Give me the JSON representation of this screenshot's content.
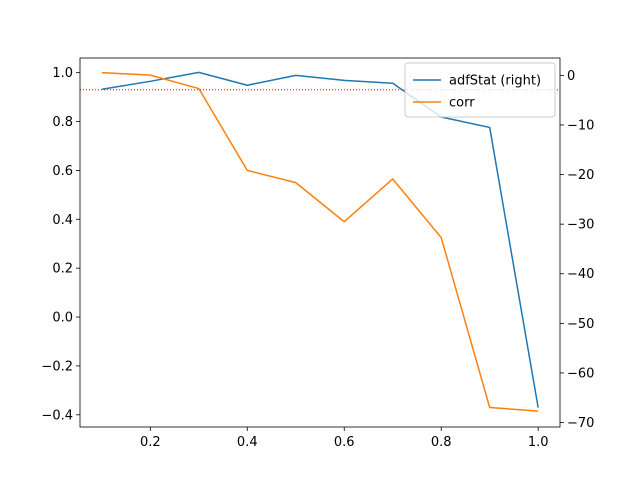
{
  "chart_data": {
    "type": "line",
    "x": [
      0.1,
      0.2,
      0.3,
      0.4,
      0.5,
      0.6,
      0.7,
      0.8,
      0.9,
      1.0
    ],
    "series": [
      {
        "name": "adfStat (right)",
        "axis": "right",
        "color": "#1f77b4",
        "values": [
          -2.8,
          -1.2,
          0.6,
          -2.0,
          0.0,
          -1.0,
          -1.6,
          -8.4,
          -10.5,
          -67.0
        ]
      },
      {
        "name": "corr",
        "axis": "left",
        "color": "#ff7f0e",
        "values": [
          1.0,
          0.99,
          0.935,
          0.6,
          0.55,
          0.39,
          0.565,
          0.325,
          -0.37,
          -0.385
        ]
      }
    ],
    "reference_line": {
      "axis": "left",
      "y": 0.93,
      "color": "#ff0000",
      "style": "dotted"
    },
    "xlim": [
      0.055,
      1.045
    ],
    "ylim_left": [
      -0.45,
      1.06
    ],
    "ylim_right": [
      -70.9,
      3.5
    ],
    "x_ticks": [
      "0.2",
      "0.4",
      "0.6",
      "0.8",
      "1.0"
    ],
    "x_tick_values": [
      0.2,
      0.4,
      0.6,
      0.8,
      1.0
    ],
    "y_left_ticks": [
      "−0.4",
      "−0.2",
      "0.0",
      "0.2",
      "0.4",
      "0.6",
      "0.8",
      "1.0"
    ],
    "y_left_tick_values": [
      -0.4,
      -0.2,
      0.0,
      0.2,
      0.4,
      0.6,
      0.8,
      1.0
    ],
    "y_right_ticks": [
      "−70",
      "−60",
      "−50",
      "−40",
      "−30",
      "−20",
      "−10",
      "0"
    ],
    "y_right_tick_values": [
      -70,
      -60,
      -50,
      -40,
      -30,
      -20,
      -10,
      0
    ],
    "legend": {
      "position": "top-right",
      "entries": [
        "adfStat (right)",
        "corr"
      ]
    },
    "grid": false
  }
}
